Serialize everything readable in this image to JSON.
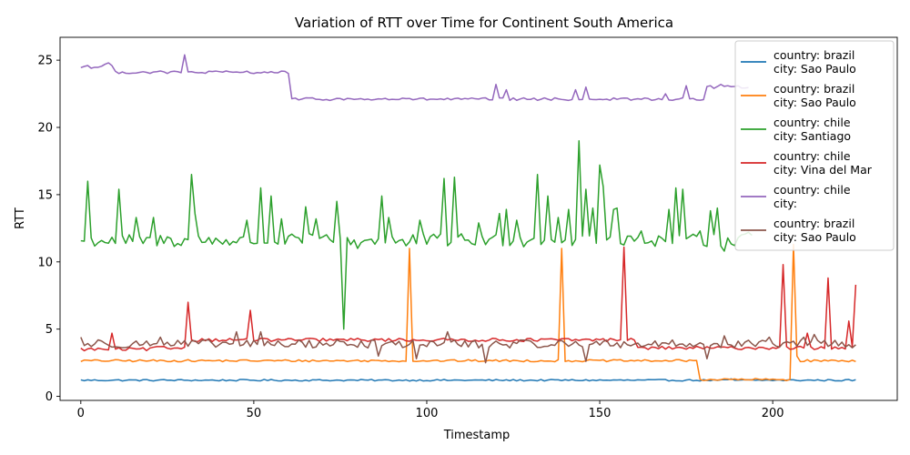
{
  "chart_data": {
    "type": "line",
    "title": "Variation of RTT over Time for Continent South America",
    "xlabel": "Timestamp",
    "ylabel": "RTT",
    "xlim": [
      -6,
      236
    ],
    "ylim": [
      -0.3,
      26.7
    ],
    "xticks": [
      0,
      50,
      100,
      150,
      200
    ],
    "yticks": [
      0,
      5,
      10,
      15,
      20,
      25
    ],
    "grid": false,
    "legend_position": "top-right",
    "x_count": 225,
    "series": [
      {
        "name_lines": [
          "country: brazil",
          "city: Sao Paulo"
        ],
        "color": "#1f77b4",
        "base": 1.2,
        "noise": 0.06,
        "spikes": [
          [
            188,
            1.3
          ]
        ],
        "segments": []
      },
      {
        "name_lines": [
          "country: brazil",
          "city: Sao Paulo"
        ],
        "color": "#ff7f0e",
        "base": 2.65,
        "noise": 0.08,
        "spikes": [
          [
            95,
            11.0
          ],
          [
            139,
            11.0
          ],
          [
            206,
            11.3
          ],
          [
            207,
            3.0
          ]
        ],
        "segments": [
          [
            179,
            205,
            1.25
          ]
        ]
      },
      {
        "name_lines": [
          "country: chile",
          "city: Santiago"
        ],
        "color": "#2ca02c",
        "base": 11.6,
        "noise": 0.5,
        "spikes": [
          [
            2,
            16.0
          ],
          [
            11,
            15.4
          ],
          [
            16,
            13.3
          ],
          [
            21,
            13.3
          ],
          [
            32,
            16.5
          ],
          [
            33,
            13.6
          ],
          [
            48,
            13.1
          ],
          [
            52,
            15.5
          ],
          [
            55,
            14.9
          ],
          [
            58,
            13.2
          ],
          [
            65,
            14.1
          ],
          [
            68,
            13.2
          ],
          [
            74,
            14.5
          ],
          [
            76,
            5.0
          ],
          [
            80,
            11.0
          ],
          [
            87,
            14.9
          ],
          [
            89,
            13.3
          ],
          [
            94,
            11.2
          ],
          [
            98,
            13.1
          ],
          [
            105,
            16.2
          ],
          [
            108,
            16.3
          ],
          [
            115,
            12.9
          ],
          [
            121,
            13.6
          ],
          [
            123,
            13.9
          ],
          [
            126,
            13.1
          ],
          [
            132,
            16.5
          ],
          [
            135,
            14.9
          ],
          [
            138,
            13.3
          ],
          [
            141,
            13.9
          ],
          [
            144,
            19.0
          ],
          [
            146,
            15.4
          ],
          [
            148,
            14.0
          ],
          [
            150,
            17.2
          ],
          [
            151,
            15.6
          ],
          [
            154,
            13.9
          ],
          [
            155,
            14.0
          ],
          [
            162,
            12.3
          ],
          [
            170,
            13.9
          ],
          [
            172,
            15.5
          ],
          [
            174,
            15.4
          ],
          [
            179,
            12.3
          ],
          [
            182,
            13.8
          ],
          [
            184,
            14.0
          ],
          [
            186,
            10.8
          ],
          [
            190,
            11.8
          ],
          [
            193,
            12.2
          ]
        ],
        "segments": [],
        "end": 194
      },
      {
        "name_lines": [
          "country: chile",
          "city: Vina del Mar"
        ],
        "color": "#d62728",
        "base": 3.6,
        "noise": 0.12,
        "spikes": [
          [
            9,
            4.7
          ],
          [
            31,
            7.0
          ],
          [
            49,
            6.4
          ],
          [
            157,
            11.1
          ],
          [
            203,
            9.8
          ],
          [
            210,
            4.7
          ],
          [
            216,
            8.8
          ],
          [
            222,
            5.6
          ],
          [
            224,
            8.3
          ]
        ],
        "segments": [
          [
            0,
            20,
            3.5
          ],
          [
            32,
            160,
            4.2
          ]
        ]
      },
      {
        "name_lines": [
          "country: chile",
          "city:"
        ],
        "color": "#9467bd",
        "base": 22.1,
        "noise": 0.1,
        "spikes": [
          [
            2,
            24.6
          ],
          [
            7,
            24.7
          ],
          [
            8,
            24.8
          ],
          [
            30,
            25.4
          ],
          [
            120,
            23.2
          ],
          [
            123,
            22.8
          ],
          [
            143,
            22.8
          ],
          [
            146,
            23.0
          ],
          [
            169,
            22.5
          ],
          [
            175,
            23.1
          ],
          [
            182,
            23.1
          ],
          [
            185,
            23.2
          ],
          [
            187,
            23.1
          ]
        ],
        "segments": [
          [
            0,
            9,
            24.5
          ],
          [
            10,
            60,
            24.1
          ],
          [
            181,
            193,
            23.0
          ]
        ],
        "end": 193
      },
      {
        "name_lines": [
          "country: brazil",
          "city: Sao Paulo"
        ],
        "color": "#8c564b",
        "base": 3.9,
        "noise": 0.3,
        "spikes": [
          [
            0,
            4.4
          ],
          [
            5,
            4.2
          ],
          [
            23,
            4.4
          ],
          [
            45,
            4.8
          ],
          [
            52,
            4.8
          ],
          [
            74,
            4.2
          ],
          [
            86,
            3.0
          ],
          [
            97,
            2.8
          ],
          [
            106,
            4.8
          ],
          [
            117,
            2.5
          ],
          [
            146,
            2.6
          ],
          [
            181,
            2.8
          ],
          [
            186,
            4.5
          ],
          [
            199,
            4.4
          ],
          [
            209,
            4.4
          ],
          [
            212,
            4.6
          ]
        ],
        "segments": []
      }
    ]
  }
}
